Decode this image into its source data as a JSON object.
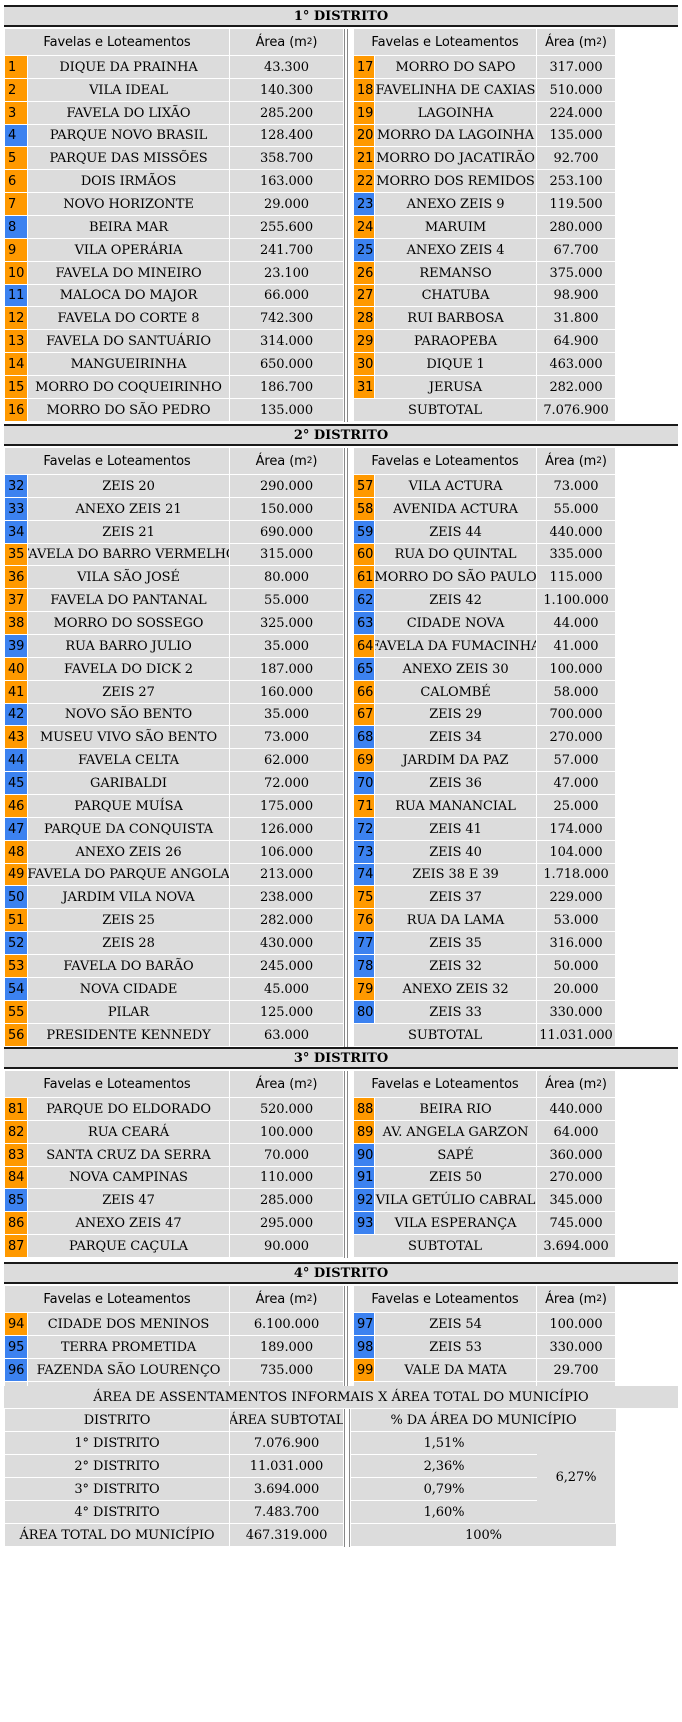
{
  "header_fav": "Favelas e Loteamentos",
  "header_area": "Área (m",
  "header_area_sup": "2",
  "header_area_close": ")",
  "subtotal_label": "SUBTOTAL",
  "colors": {
    "orange": "#ff9900",
    "blue": "#3c82f0",
    "cell": "#dcdcdc"
  },
  "districts": [
    {
      "title": "1° DISTRITO",
      "left": [
        {
          "n": "1",
          "c": "orange",
          "name": "DIQUE DA PRAINHA",
          "area": "43.300"
        },
        {
          "n": "2",
          "c": "orange",
          "name": "VILA IDEAL",
          "area": "140.300"
        },
        {
          "n": "3",
          "c": "orange",
          "name": "FAVELA DO LIXÃO",
          "area": "285.200"
        },
        {
          "n": "4",
          "c": "blue",
          "name": "PARQUE NOVO BRASIL",
          "area": "128.400"
        },
        {
          "n": "5",
          "c": "orange",
          "name": "PARQUE DAS MISSÕES",
          "area": "358.700"
        },
        {
          "n": "6",
          "c": "orange",
          "name": "DOIS IRMÃOS",
          "area": "163.000"
        },
        {
          "n": "7",
          "c": "orange",
          "name": "NOVO HORIZONTE",
          "area": "29.000"
        },
        {
          "n": "8",
          "c": "blue",
          "name": "BEIRA MAR",
          "area": "255.600"
        },
        {
          "n": "9",
          "c": "orange",
          "name": "VILA OPERÁRIA",
          "area": "241.700"
        },
        {
          "n": "10",
          "c": "orange",
          "name": "FAVELA DO MINEIRO",
          "area": "23.100"
        },
        {
          "n": "11",
          "c": "blue",
          "name": "MALOCA DO MAJOR",
          "area": "66.000"
        },
        {
          "n": "12",
          "c": "orange",
          "name": "FAVELA DO CORTE 8",
          "area": "742.300"
        },
        {
          "n": "13",
          "c": "orange",
          "name": "FAVELA DO SANTUÁRIO",
          "area": "314.000"
        },
        {
          "n": "14",
          "c": "orange",
          "name": "MANGUEIRINHA",
          "area": "650.000"
        },
        {
          "n": "15",
          "c": "orange",
          "name": "MORRO DO COQUEIRINHO",
          "area": "186.700"
        },
        {
          "n": "16",
          "c": "orange",
          "name": "MORRO DO SÃO PEDRO",
          "area": "135.000"
        }
      ],
      "right": [
        {
          "n": "17",
          "c": "orange",
          "name": "MORRO DO SAPO",
          "area": "317.000"
        },
        {
          "n": "18",
          "c": "orange",
          "name": "FAVELINHA DE CAXIAS",
          "area": "510.000"
        },
        {
          "n": "19",
          "c": "orange",
          "name": "LAGOINHA",
          "area": "224.000"
        },
        {
          "n": "20",
          "c": "orange",
          "name": "MORRO DA LAGOINHA",
          "area": "135.000"
        },
        {
          "n": "21",
          "c": "orange",
          "name": "MORRO DO JACATIRÃO",
          "area": "92.700"
        },
        {
          "n": "22",
          "c": "orange",
          "name": "MORRO DOS REMIDOS",
          "area": "253.100"
        },
        {
          "n": "23",
          "c": "blue",
          "name": "ANEXO ZEIS 9",
          "area": "119.500"
        },
        {
          "n": "24",
          "c": "orange",
          "name": "MARUIM",
          "area": "280.000"
        },
        {
          "n": "25",
          "c": "blue",
          "name": "ANEXO ZEIS 4",
          "area": "67.700"
        },
        {
          "n": "26",
          "c": "orange",
          "name": "REMANSO",
          "area": "375.000"
        },
        {
          "n": "27",
          "c": "orange",
          "name": "CHATUBA",
          "area": "98.900"
        },
        {
          "n": "28",
          "c": "orange",
          "name": "RUI BARBOSA",
          "area": "31.800"
        },
        {
          "n": "29",
          "c": "orange",
          "name": "PARAOPEBA",
          "area": "64.900"
        },
        {
          "n": "30",
          "c": "orange",
          "name": "DIQUE 1",
          "area": "463.000"
        },
        {
          "n": "31",
          "c": "orange",
          "name": "JERUSA",
          "area": "282.000"
        }
      ],
      "subtotal": "7.076.900"
    },
    {
      "title": "2° DISTRITO",
      "left": [
        {
          "n": "32",
          "c": "blue",
          "name": "ZEIS 20",
          "area": "290.000"
        },
        {
          "n": "33",
          "c": "blue",
          "name": "ANEXO ZEIS 21",
          "area": "150.000"
        },
        {
          "n": "34",
          "c": "blue",
          "name": "ZEIS 21",
          "area": "690.000"
        },
        {
          "n": "35",
          "c": "orange",
          "name": "FAVELA DO BARRO VERMELHO",
          "area": "315.000"
        },
        {
          "n": "36",
          "c": "orange",
          "name": "VILA SÃO JOSÉ",
          "area": "80.000"
        },
        {
          "n": "37",
          "c": "orange",
          "name": "FAVELA DO PANTANAL",
          "area": "55.000"
        },
        {
          "n": "38",
          "c": "orange",
          "name": "MORRO DO SOSSEGO",
          "area": "325.000"
        },
        {
          "n": "39",
          "c": "blue",
          "name": "RUA BARRO JULIO",
          "area": "35.000"
        },
        {
          "n": "40",
          "c": "orange",
          "name": "FAVELA DO DICK 2",
          "area": "187.000"
        },
        {
          "n": "41",
          "c": "orange",
          "name": "ZEIS 27",
          "area": "160.000"
        },
        {
          "n": "42",
          "c": "blue",
          "name": "NOVO SÃO BENTO",
          "area": "35.000"
        },
        {
          "n": "43",
          "c": "orange",
          "name": "MUSEU VIVO SÃO BENTO",
          "area": "73.000"
        },
        {
          "n": "44",
          "c": "blue",
          "name": "FAVELA CELTA",
          "area": "62.000"
        },
        {
          "n": "45",
          "c": "blue",
          "name": "GARIBALDI",
          "area": "72.000"
        },
        {
          "n": "46",
          "c": "orange",
          "name": "PARQUE MUÍSA",
          "area": "175.000"
        },
        {
          "n": "47",
          "c": "blue",
          "name": "PARQUE DA CONQUISTA",
          "area": "126.000"
        },
        {
          "n": "48",
          "c": "orange",
          "name": "ANEXO ZEIS 26",
          "area": "106.000"
        },
        {
          "n": "49",
          "c": "orange",
          "name": "FAVELA DO PARQUE ANGOLA",
          "area": "213.000"
        },
        {
          "n": "50",
          "c": "blue",
          "name": "JARDIM VILA NOVA",
          "area": "238.000"
        },
        {
          "n": "51",
          "c": "orange",
          "name": "ZEIS 25",
          "area": "282.000"
        },
        {
          "n": "52",
          "c": "blue",
          "name": "ZEIS 28",
          "area": "430.000"
        },
        {
          "n": "53",
          "c": "orange",
          "name": "FAVELA DO BARÃO",
          "area": "245.000"
        },
        {
          "n": "54",
          "c": "blue",
          "name": "NOVA CIDADE",
          "area": "45.000"
        },
        {
          "n": "55",
          "c": "orange",
          "name": "PILAR",
          "area": "125.000"
        },
        {
          "n": "56",
          "c": "orange",
          "name": "PRESIDENTE KENNEDY",
          "area": "63.000"
        }
      ],
      "right": [
        {
          "n": "57",
          "c": "orange",
          "name": "VILA ACTURA",
          "area": "73.000"
        },
        {
          "n": "58",
          "c": "orange",
          "name": "AVENIDA ACTURA",
          "area": "55.000"
        },
        {
          "n": "59",
          "c": "blue",
          "name": "ZEIS 44",
          "area": "440.000"
        },
        {
          "n": "60",
          "c": "orange",
          "name": "RUA DO QUINTAL",
          "area": "335.000"
        },
        {
          "n": "61",
          "c": "orange",
          "name": "MORRO DO SÃO PAULO",
          "area": "115.000"
        },
        {
          "n": "62",
          "c": "blue",
          "name": "ZEIS 42",
          "area": "1.100.000"
        },
        {
          "n": "63",
          "c": "blue",
          "name": "CIDADE NOVA",
          "area": "44.000"
        },
        {
          "n": "64",
          "c": "orange",
          "name": "FAVELA DA FUMACINHA",
          "area": "41.000"
        },
        {
          "n": "65",
          "c": "blue",
          "name": "ANEXO ZEIS 30",
          "area": "100.000"
        },
        {
          "n": "66",
          "c": "orange",
          "name": "CALOMBÉ",
          "area": "58.000"
        },
        {
          "n": "67",
          "c": "orange",
          "name": "ZEIS 29",
          "area": "700.000"
        },
        {
          "n": "68",
          "c": "blue",
          "name": "ZEIS 34",
          "area": "270.000"
        },
        {
          "n": "69",
          "c": "orange",
          "name": "JARDIM DA PAZ",
          "area": "57.000"
        },
        {
          "n": "70",
          "c": "blue",
          "name": "ZEIS 36",
          "area": "47.000"
        },
        {
          "n": "71",
          "c": "orange",
          "name": "RUA MANANCIAL",
          "area": "25.000"
        },
        {
          "n": "72",
          "c": "blue",
          "name": "ZEIS 41",
          "area": "174.000"
        },
        {
          "n": "73",
          "c": "blue",
          "name": "ZEIS 40",
          "area": "104.000"
        },
        {
          "n": "74",
          "c": "blue",
          "name": "ZEIS 38 E 39",
          "area": "1.718.000"
        },
        {
          "n": "75",
          "c": "orange",
          "name": "ZEIS 37",
          "area": "229.000"
        },
        {
          "n": "76",
          "c": "orange",
          "name": "RUA DA LAMA",
          "area": "53.000"
        },
        {
          "n": "77",
          "c": "blue",
          "name": "ZEIS 35",
          "area": "316.000"
        },
        {
          "n": "78",
          "c": "blue",
          "name": "ZEIS 32",
          "area": "50.000"
        },
        {
          "n": "79",
          "c": "orange",
          "name": "ANEXO ZEIS 32",
          "area": "20.000"
        },
        {
          "n": "80",
          "c": "blue",
          "name": "ZEIS 33",
          "area": "330.000"
        }
      ],
      "subtotal": "11.031.000"
    },
    {
      "title": "3° DISTRITO",
      "left": [
        {
          "n": "81",
          "c": "orange",
          "name": "PARQUE DO ELDORADO",
          "area": "520.000"
        },
        {
          "n": "82",
          "c": "orange",
          "name": "RUA CEARÁ",
          "area": "100.000"
        },
        {
          "n": "83",
          "c": "orange",
          "name": "SANTA CRUZ DA SERRA",
          "area": "70.000"
        },
        {
          "n": "84",
          "c": "orange",
          "name": "NOVA CAMPINAS",
          "area": "110.000"
        },
        {
          "n": "85",
          "c": "blue",
          "name": "ZEIS 47",
          "area": "285.000"
        },
        {
          "n": "86",
          "c": "orange",
          "name": "ANEXO ZEIS 47",
          "area": "295.000"
        },
        {
          "n": "87",
          "c": "orange",
          "name": "PARQUE CAÇULA",
          "area": "90.000"
        }
      ],
      "right": [
        {
          "n": "88",
          "c": "orange",
          "name": "BEIRA RIO",
          "area": "440.000"
        },
        {
          "n": "89",
          "c": "orange",
          "name": "AV. ANGELA GARZON",
          "area": "64.000"
        },
        {
          "n": "90",
          "c": "blue",
          "name": "SAPÉ",
          "area": "360.000"
        },
        {
          "n": "91",
          "c": "blue",
          "name": "ZEIS 50",
          "area": "270.000"
        },
        {
          "n": "92",
          "c": "blue",
          "name": "VILA GETÚLIO CABRAL",
          "area": "345.000"
        },
        {
          "n": "93",
          "c": "blue",
          "name": "VILA ESPERANÇA",
          "area": "745.000"
        }
      ],
      "subtotal": "3.694.000"
    },
    {
      "title": "4° DISTRITO",
      "left": [
        {
          "n": "94",
          "c": "orange",
          "name": "CIDADE DOS MENINOS",
          "area": "6.100.000"
        },
        {
          "n": "95",
          "c": "blue",
          "name": "TERRA PROMETIDA",
          "area": "189.000"
        },
        {
          "n": "96",
          "c": "blue",
          "name": "FAZENDA SÃO LOURENÇO",
          "area": "735.000"
        }
      ],
      "right": [
        {
          "n": "97",
          "c": "blue",
          "name": "ZEIS 54",
          "area": "100.000"
        },
        {
          "n": "98",
          "c": "blue",
          "name": "ZEIS 53",
          "area": "330.000"
        },
        {
          "n": "99",
          "c": "orange",
          "name": "VALE DA MATA",
          "area": "29.700"
        }
      ],
      "subtotal": "7.483.700"
    }
  ],
  "summary": {
    "title": "ÁREA DE ASSENTAMENTOS INFORMAIS X ÁREA TOTAL DO MUNICÍPIO",
    "headers": [
      "DISTRITO",
      "ÁREA SUBTOTAL",
      "% DA ÁREA DO MUNICÍPIO"
    ],
    "rows": [
      {
        "d": "1° DISTRITO",
        "a": "7.076.900",
        "p": "1,51%"
      },
      {
        "d": "2° DISTRITO",
        "a": "11.031.000",
        "p": "2,36%"
      },
      {
        "d": "3° DISTRITO",
        "a": "3.694.000",
        "p": "0,79%"
      },
      {
        "d": "4° DISTRITO",
        "a": "7.483.700",
        "p": "1,60%"
      }
    ],
    "combined_pct": "6,27%",
    "total_label": "ÁREA TOTAL DO MUNICÍPIO",
    "total_area": "467.319.000",
    "total_pct": "100%"
  }
}
